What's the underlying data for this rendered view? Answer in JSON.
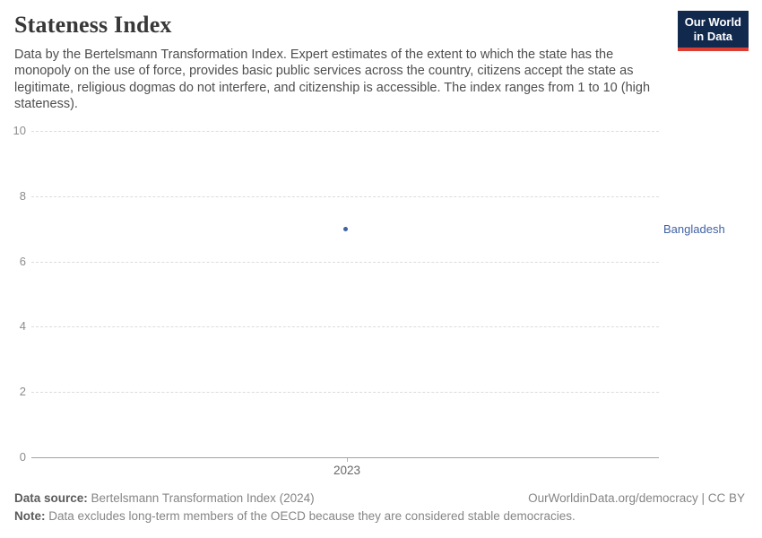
{
  "header": {
    "title": "Stateness Index",
    "subtitle": "Data by the Bertelsmann Transformation Index. Expert estimates of the extent to which the state has the monopoly on the use of force, provides basic public services across the country, citizens accept the state as legitimate, religious dogmas do not interfere, and citizenship is accessible. The index ranges from 1 to 10 (high stateness).",
    "logo": {
      "line1": "Our World",
      "line2": "in Data",
      "bg_color": "#12294e",
      "accent_color": "#dc3d33"
    }
  },
  "chart_data": {
    "type": "scatter",
    "title": "Stateness Index",
    "x": [
      2023
    ],
    "xticks": [
      "2023"
    ],
    "series": [
      {
        "name": "Bangladesh",
        "values": [
          7
        ],
        "color": "#4062a3"
      }
    ],
    "ylim": [
      0,
      10
    ],
    "yticks": [
      0,
      2,
      4,
      6,
      8,
      10
    ],
    "grid": "horizontal-dashed",
    "legend_position": "right-of-point"
  },
  "footer": {
    "source_label": "Data source:",
    "source_text": " Bertelsmann Transformation Index (2024)",
    "rights": "OurWorldinData.org/democracy | CC BY",
    "note_label": "Note:",
    "note_text": " Data excludes long-term members of the OECD because they are considered stable democracies."
  }
}
